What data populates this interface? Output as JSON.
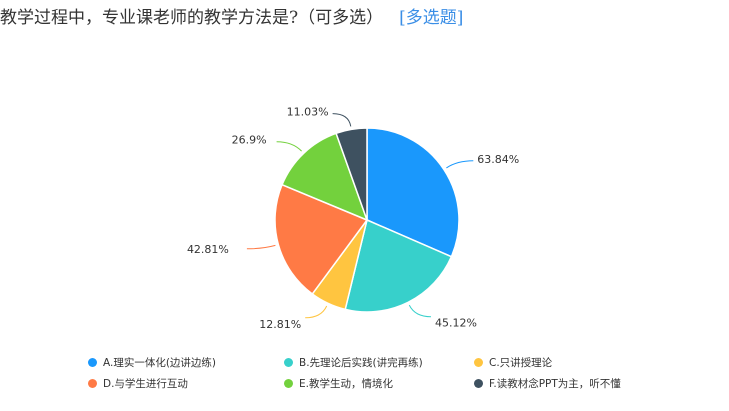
{
  "question": {
    "text": "教学过程中，专业课老师的教学方法是?（可多选）",
    "tag": "[多选题]"
  },
  "chart_data": {
    "type": "pie",
    "categories": [
      "A.理实一体化(边讲边练)",
      "B.先理论后实践(讲完再练)",
      "C.只讲授理论",
      "D.与学生进行互动",
      "E.教学生动，情境化",
      "F.读教材念PPT为主，听不懂"
    ],
    "values": [
      63.84,
      45.12,
      12.81,
      42.81,
      26.9,
      11.03
    ],
    "labels": [
      "63.84%",
      "45.12%",
      "12.81%",
      "42.81%",
      "26.9%",
      "11.03%"
    ],
    "colors": [
      "#1a98fc",
      "#37d0cb",
      "#ffc540",
      "#ff7a45",
      "#73d13d",
      "#3e5160"
    ],
    "legend_position": "bottom"
  }
}
